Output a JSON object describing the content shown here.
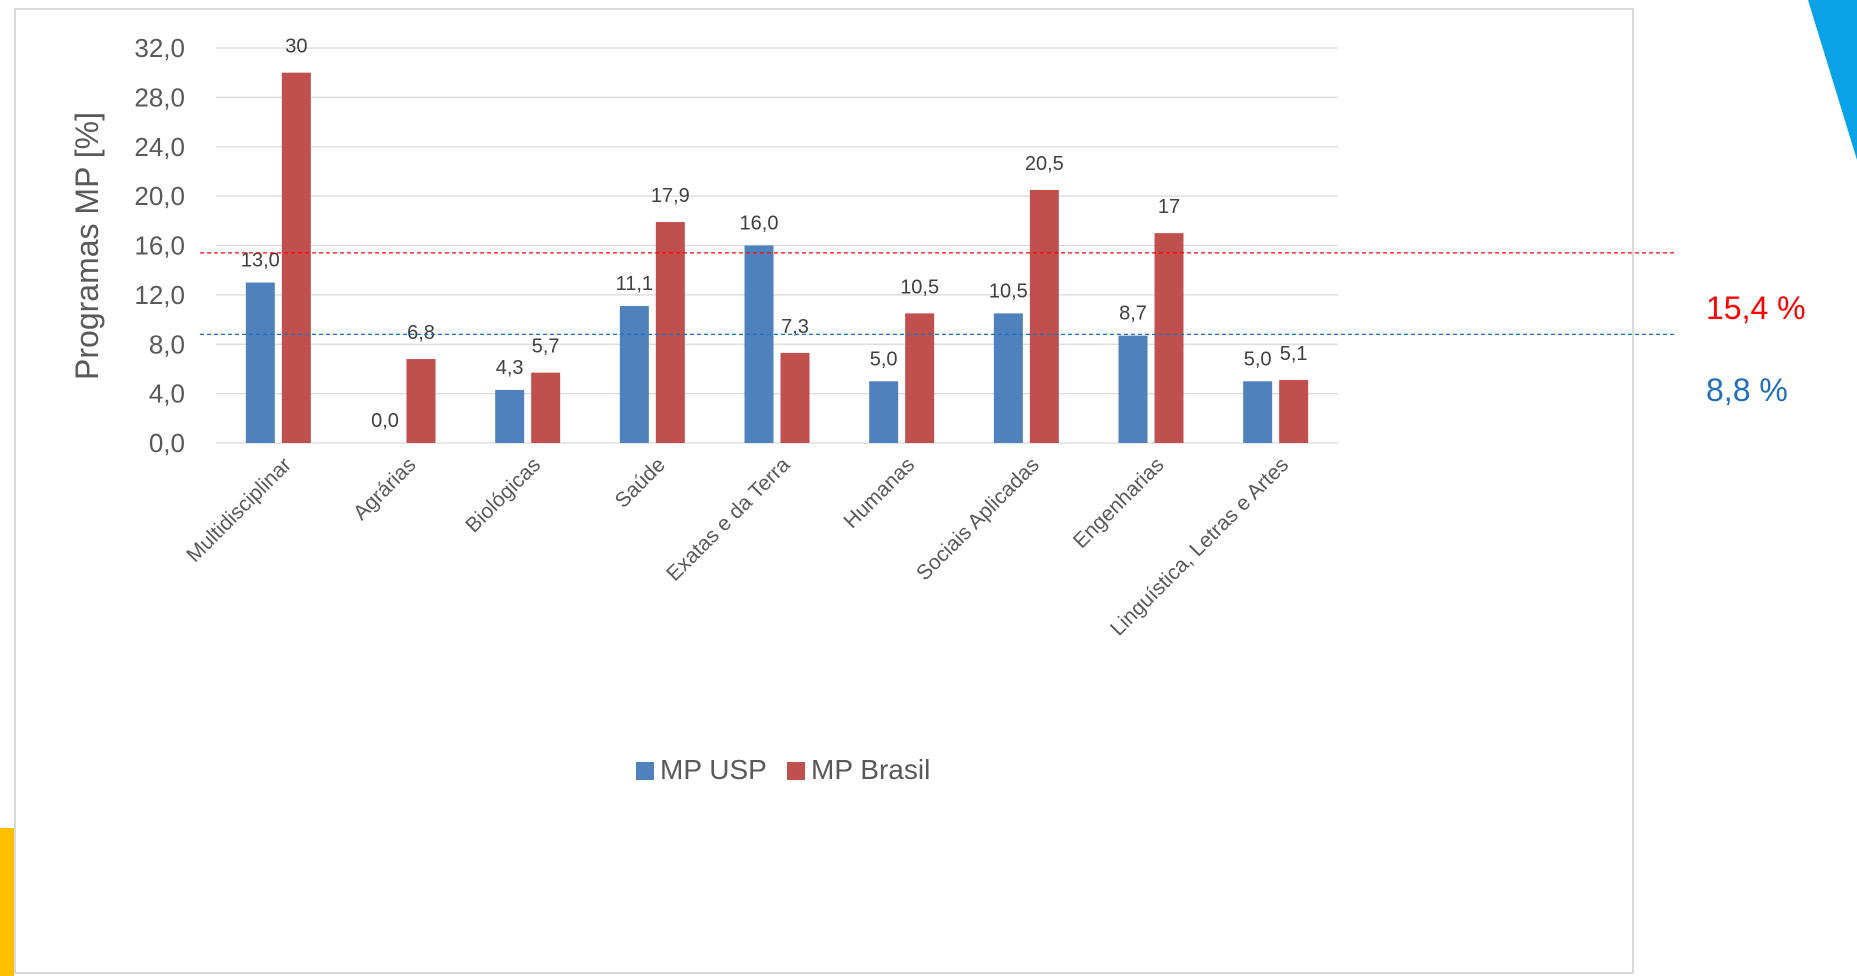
{
  "chart_data": {
    "type": "bar",
    "ylabel": "Programas MP [%]",
    "xlabel": "",
    "title": "",
    "ylim": [
      0,
      32
    ],
    "yticks": [
      0,
      4,
      8,
      12,
      16,
      20,
      24,
      28,
      32
    ],
    "ytick_labels": [
      "0,0",
      "4,0",
      "8,0",
      "12,0",
      "16,0",
      "20,0",
      "24,0",
      "28,0",
      "32,0"
    ],
    "grid": true,
    "legend_position": "bottom",
    "categories": [
      "Multidisciplinar",
      "Agrárias",
      "Biológicas",
      "Saúde",
      "Exatas e da Terra",
      "Humanas",
      "Sociais Aplicadas",
      "Engenharias",
      "Linguística, Letras e Artes"
    ],
    "series": [
      {
        "name": "MP USP",
        "color": "#4f81bd",
        "values": [
          13.0,
          0.0,
          4.3,
          11.1,
          16.0,
          5.0,
          10.5,
          8.7,
          5.0
        ],
        "labels": [
          "13,0",
          "0,0",
          "4,3",
          "11,1",
          "16,0",
          "5,0",
          "10,5",
          "8,7",
          "5,0"
        ]
      },
      {
        "name": "MP Brasil",
        "color": "#c0504d",
        "values": [
          30,
          6.8,
          5.7,
          17.9,
          7.3,
          10.5,
          20.5,
          17,
          5.1
        ],
        "labels": [
          "30",
          "6,8",
          "5,7",
          "17,9",
          "7,3",
          "10,5",
          "20,5",
          "17",
          "5,1"
        ]
      }
    ],
    "reference_lines": [
      {
        "value": 15.4,
        "label": "15,4 %",
        "color": "#ff0000"
      },
      {
        "value": 8.8,
        "label": "8,8 %",
        "color": "#1f6fbf"
      }
    ]
  },
  "decor": {
    "top_right_shape_color": "#0aa2e6",
    "bottom_left_shape_color": "#ffc000"
  }
}
